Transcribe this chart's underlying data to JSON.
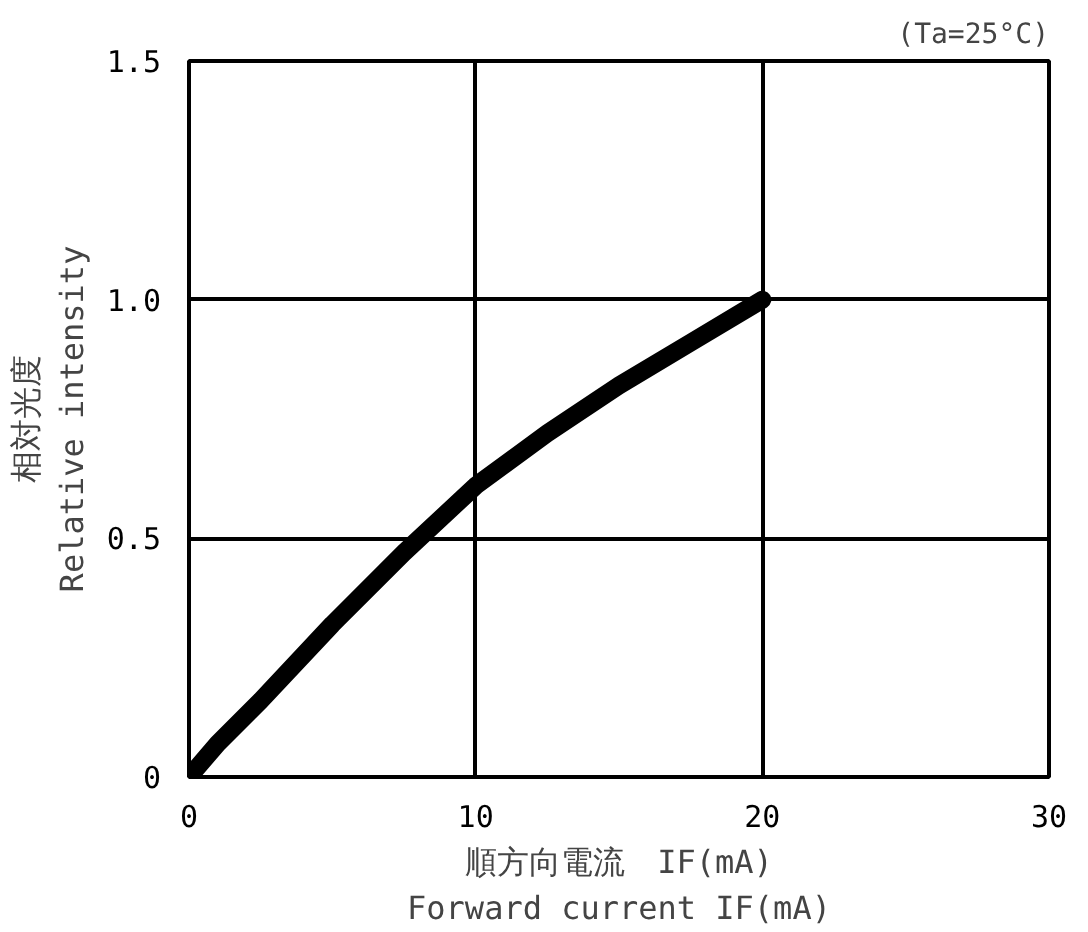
{
  "chart_data": {
    "type": "line",
    "xlabel": "順方向電流　IF(mA)\nForward current IF(mA)",
    "ylabel": "相対光度\nRelative intensity",
    "annotations": [
      "(Ta=25°C)"
    ],
    "x": [
      0,
      1,
      2.5,
      5,
      7.5,
      10,
      12.5,
      15,
      17.5,
      20
    ],
    "series": [
      {
        "color": "#000000",
        "values": [
          0,
          0.07,
          0.16,
          0.32,
          0.47,
          0.61,
          0.72,
          0.82,
          0.91,
          1.0
        ]
      }
    ],
    "xlim": [
      0,
      30
    ],
    "xticks": [
      0,
      10,
      20,
      30
    ],
    "ylim": [
      0,
      1.5
    ],
    "yticks": [
      0,
      0.5,
      {
        "value": 1,
        "label": "1.0"
      },
      1.5
    ],
    "grid": true,
    "marker": "none",
    "line_style": "solid"
  }
}
